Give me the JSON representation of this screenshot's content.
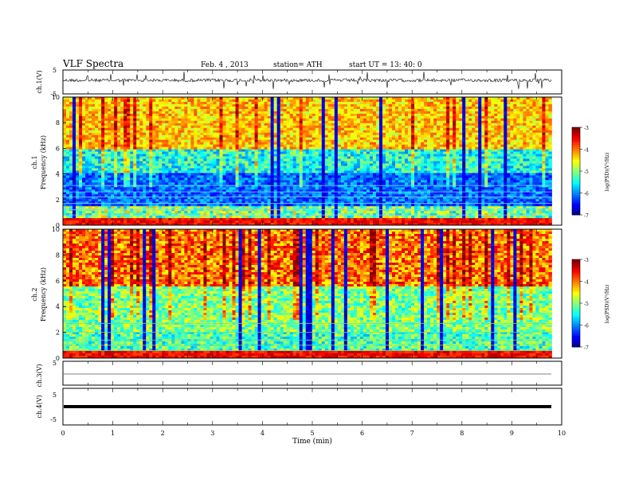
{
  "header": {
    "title": "VLF  Spectra",
    "date": "Feb. 4  , 2013",
    "station": "station= ATH",
    "start": "start  UT  =    13: 40: 0"
  },
  "chart_data": [
    {
      "type": "line",
      "name": "ch1-waveform",
      "ylabel": "ch.1(V)",
      "ylim": [
        -5,
        5
      ],
      "yticks": [
        "5",
        "-5"
      ],
      "xlim": [
        0,
        10
      ]
    },
    {
      "type": "heatmap",
      "name": "ch1-spectrogram",
      "ylabel_top": "ch.1",
      "ylabel": "Frequency  (kHz)",
      "ylim": [
        0,
        10
      ],
      "yticks": [
        "0",
        "2",
        "4",
        "6",
        "8",
        "10"
      ],
      "xlim": [
        0,
        9.8
      ],
      "colorbar": {
        "label": "log(PSD)(V²/Hz)",
        "range": [
          -7,
          -3
        ],
        "ticks": [
          "-3",
          "-4",
          "-5",
          "-6",
          "-7"
        ]
      }
    },
    {
      "type": "heatmap",
      "name": "ch2-spectrogram",
      "ylabel_top": "ch.2",
      "ylabel": "Frequency  (kHz)",
      "ylim": [
        0,
        10
      ],
      "yticks": [
        "0",
        "2",
        "4",
        "6",
        "8",
        "10"
      ],
      "xlim": [
        0,
        9.8
      ],
      "colorbar": {
        "label": "log(PSD)(V²/Hz)",
        "range": [
          -7,
          -3
        ],
        "ticks": [
          "-3",
          "-4",
          "-5",
          "-6",
          "-7"
        ]
      }
    },
    {
      "type": "line",
      "name": "ch3-waveform",
      "ylabel": "ch.3(V)",
      "ylim": [
        -5,
        5
      ],
      "yticks": [
        "5"
      ],
      "xlim": [
        0,
        10
      ]
    },
    {
      "type": "line",
      "name": "ch4-waveform",
      "ylabel": "ch.4(V)",
      "ylim": [
        -5,
        5
      ],
      "yticks": [
        "5",
        "-5"
      ],
      "xlim": [
        0,
        10
      ],
      "xlabel": "Time  (min)",
      "xticks": [
        "0",
        "1",
        "2",
        "3",
        "4",
        "5",
        "6",
        "7",
        "8",
        "9",
        "10"
      ]
    }
  ]
}
